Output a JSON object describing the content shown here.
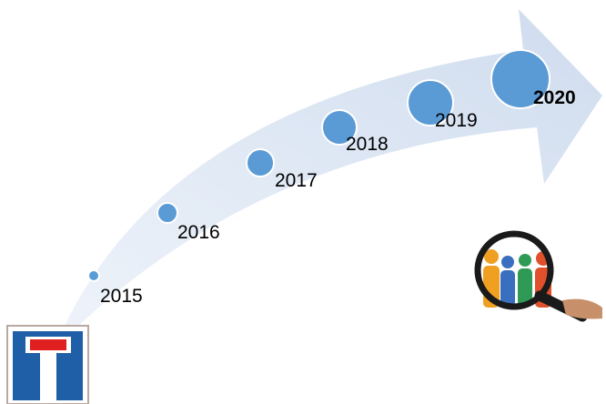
{
  "timeline": {
    "nodes": [
      {
        "label": "2015"
      },
      {
        "label": "2016"
      },
      {
        "label": "2017"
      },
      {
        "label": "2018"
      },
      {
        "label": "2019"
      },
      {
        "label": "2020"
      }
    ]
  }
}
